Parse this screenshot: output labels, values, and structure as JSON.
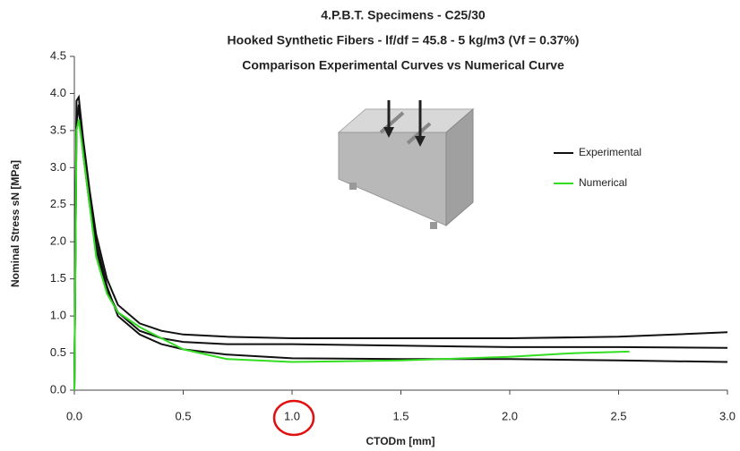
{
  "chart_data": {
    "type": "line",
    "title": [
      "4.P.B.T. Specimens - C25/30",
      "Hooked Synthetic Fibers - lf/df = 45.8 - 5 kg/m3 (Vf = 0.37%)",
      "Comparison Experimental Curves vs Numerical Curve"
    ],
    "xlabel": "CTODm [mm]",
    "ylabel": "Nominal Stress sN [MPa]",
    "xlim": [
      0,
      3
    ],
    "ylim": [
      0,
      4.5
    ],
    "xticks": [
      {
        "value": 0,
        "label": "0.0"
      },
      0.5,
      {
        "value": 1,
        "label": "1.0"
      },
      1.5,
      {
        "value": 2,
        "label": "2.0"
      },
      2.5,
      {
        "value": 3,
        "label": "3.0"
      }
    ],
    "yticks": [
      {
        "value": 0,
        "label": "0.0"
      },
      0.5,
      {
        "value": 1,
        "label": "1.0"
      },
      1.5,
      {
        "value": 2,
        "label": "2.0"
      },
      2.5,
      {
        "value": 3,
        "label": "3.0"
      },
      3.5,
      {
        "value": 4,
        "label": "4.0"
      },
      4.5
    ],
    "series": [
      {
        "name": "Experimental",
        "color": "#111111",
        "lines": [
          {
            "x": [
              0,
              0.01,
              0.02,
              0.04,
              0.07,
              0.1,
              0.15,
              0.2,
              0.3,
              0.4,
              0.5,
              0.7,
              1.0,
              1.5,
              2.0,
              2.5,
              3.0
            ],
            "values": [
              0,
              3.9,
              3.95,
              3.4,
              2.7,
              2.1,
              1.5,
              1.15,
              0.9,
              0.8,
              0.75,
              0.72,
              0.7,
              0.7,
              0.7,
              0.72,
              0.78
            ]
          },
          {
            "x": [
              0,
              0.01,
              0.02,
              0.04,
              0.07,
              0.1,
              0.15,
              0.2,
              0.3,
              0.4,
              0.5,
              0.7,
              1.0,
              1.5,
              2.0,
              2.5,
              3.0
            ],
            "values": [
              0,
              3.7,
              3.8,
              3.2,
              2.5,
              1.9,
              1.35,
              1.05,
              0.8,
              0.7,
              0.65,
              0.62,
              0.62,
              0.6,
              0.58,
              0.58,
              0.57
            ]
          },
          {
            "x": [
              0,
              0.01,
              0.02,
              0.04,
              0.07,
              0.1,
              0.15,
              0.2,
              0.3,
              0.4,
              0.5,
              0.7,
              1.0,
              1.5,
              2.0,
              2.5,
              3.0
            ],
            "values": [
              0,
              3.6,
              3.85,
              3.3,
              2.6,
              2.0,
              1.4,
              1.0,
              0.75,
              0.62,
              0.55,
              0.48,
              0.43,
              0.42,
              0.42,
              0.4,
              0.38
            ]
          }
        ]
      },
      {
        "name": "Numerical",
        "color": "#33dd22",
        "lines": [
          {
            "x": [
              0,
              0.01,
              0.02,
              0.04,
              0.07,
              0.1,
              0.15,
              0.2,
              0.3,
              0.4,
              0.5,
              0.7,
              1.0,
              1.5,
              2.0,
              2.3,
              2.55
            ],
            "values": [
              0,
              3.5,
              3.65,
              3.2,
              2.5,
              1.8,
              1.3,
              1.05,
              0.85,
              0.7,
              0.55,
              0.42,
              0.38,
              0.4,
              0.45,
              0.5,
              0.52
            ]
          }
        ]
      }
    ]
  }
}
